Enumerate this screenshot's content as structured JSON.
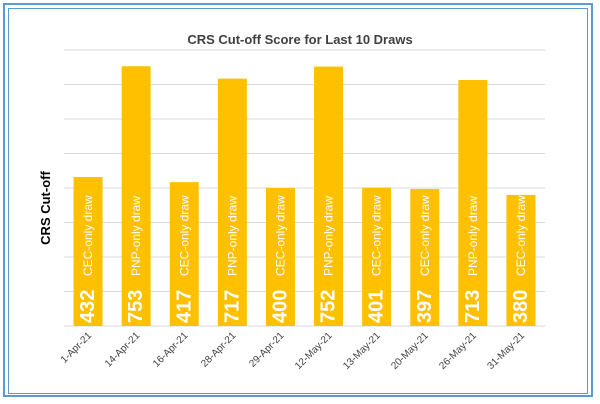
{
  "chart_data": {
    "type": "bar",
    "title": "CRS Cut-off Score for Last 10 Draws",
    "xlabel": "",
    "ylabel": "CRS Cut-off",
    "ylim": [
      0,
      800
    ],
    "grid": true,
    "bar_color": "#ffc000",
    "grid_color": "#d9d9d9",
    "frame_color": "#5b9bd5",
    "categories": [
      "1-Apr-21",
      "14-Apr-21",
      "16-Apr-21",
      "28-Apr-21",
      "29-Apr-21",
      "12-May-21",
      "13-May-21",
      "20-May-21",
      "26-May-21",
      "31-May-21"
    ],
    "values": [
      432,
      753,
      417,
      717,
      400,
      752,
      401,
      397,
      713,
      380
    ],
    "bar_labels": [
      "CEC-only draw",
      "PNP-only draw",
      "CEC-only draw",
      "PNP-only draw",
      "CEC-only draw",
      "PNP-only draw",
      "CEC-only draw",
      "CEC-only draw",
      "PNP-only draw",
      "CEC-only draw"
    ]
  }
}
